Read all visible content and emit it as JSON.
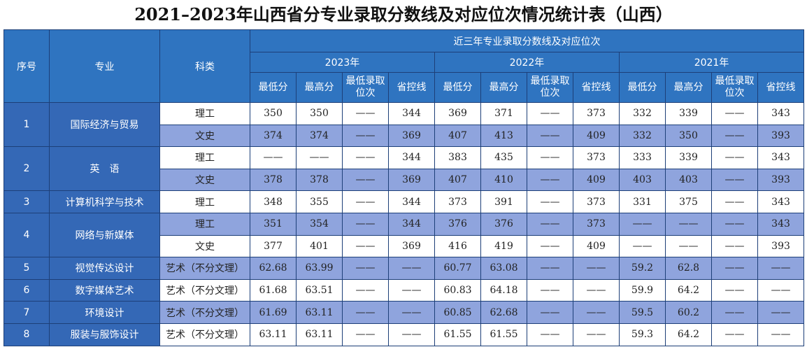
{
  "title": "2021–2023年山西省分专业录取分数线及对应位次情况统计表（山西）",
  "header": {
    "no": "序号",
    "major": "专业",
    "type": "科类",
    "span": "近三年专业录取分数线及对应位次",
    "years": [
      "2023年",
      "2022年",
      "2021年"
    ],
    "sub": [
      "最低分",
      "最高分",
      "最低录取位次",
      "省控线"
    ]
  },
  "majors": [
    {
      "no": "1",
      "name": "国际经济与贸易",
      "rows": [
        {
          "type": "理工",
          "values": [
            "350",
            "350",
            "——",
            "344",
            "369",
            "371",
            "——",
            "373",
            "332",
            "339",
            "——",
            "343"
          ]
        },
        {
          "type": "文史",
          "values": [
            "374",
            "374",
            "——",
            "369",
            "407",
            "413",
            "——",
            "409",
            "332",
            "350",
            "——",
            "393"
          ]
        }
      ]
    },
    {
      "no": "2",
      "name": "英　语",
      "rows": [
        {
          "type": "理工",
          "values": [
            "——",
            "——",
            "——",
            "344",
            "383",
            "435",
            "——",
            "373",
            "333",
            "339",
            "——",
            "343"
          ]
        },
        {
          "type": "文史",
          "values": [
            "378",
            "378",
            "——",
            "369",
            "407",
            "410",
            "——",
            "409",
            "403",
            "403",
            "——",
            "393"
          ]
        }
      ]
    },
    {
      "no": "3",
      "name": "计算机科学与技术",
      "rows": [
        {
          "type": "理工",
          "values": [
            "348",
            "355",
            "——",
            "344",
            "373",
            "391",
            "——",
            "373",
            "331",
            "375",
            "——",
            "343"
          ]
        }
      ]
    },
    {
      "no": "4",
      "name": "网络与新媒体",
      "rows": [
        {
          "type": "理工",
          "values": [
            "351",
            "354",
            "——",
            "344",
            "376",
            "376",
            "——",
            "373",
            "——",
            "——",
            "——",
            "343"
          ]
        },
        {
          "type": "文史",
          "values": [
            "377",
            "401",
            "——",
            "369",
            "416",
            "419",
            "——",
            "409",
            "——",
            "——",
            "——",
            "393"
          ]
        }
      ]
    },
    {
      "no": "5",
      "name": "视觉传达设计",
      "rows": [
        {
          "type": "艺术（不分文理）",
          "values": [
            "62.68",
            "63.99",
            "——",
            "——",
            "60.77",
            "63.08",
            "——",
            "——",
            "59.2",
            "62.8",
            "——",
            "——"
          ]
        }
      ]
    },
    {
      "no": "6",
      "name": "数字媒体艺术",
      "rows": [
        {
          "type": "艺术（不分文理）",
          "values": [
            "61.68",
            "63.51",
            "——",
            "——",
            "60.83",
            "64.18",
            "——",
            "——",
            "59.9",
            "64.2",
            "——",
            "——"
          ]
        }
      ]
    },
    {
      "no": "7",
      "name": "环境设计",
      "rows": [
        {
          "type": "艺术（不分文理）",
          "values": [
            "61.69",
            "63.11",
            "——",
            "——",
            "60.85",
            "62.68",
            "——",
            "——",
            "59.5",
            "60.2",
            "——",
            "——"
          ]
        }
      ]
    },
    {
      "no": "8",
      "name": "服装与服饰设计",
      "rows": [
        {
          "type": "艺术（不分文理）",
          "values": [
            "63.11",
            "63.11",
            "——",
            "——",
            "61.55",
            "61.55",
            "——",
            "——",
            "59.3",
            "64.2",
            "——",
            "——"
          ]
        }
      ]
    }
  ]
}
